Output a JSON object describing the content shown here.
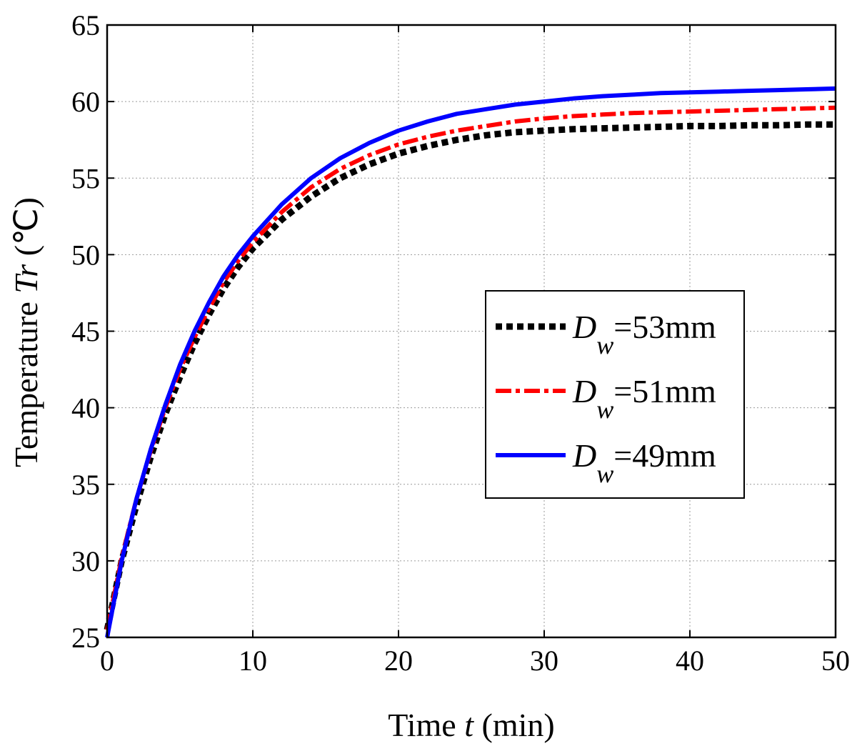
{
  "chart_data": {
    "type": "line",
    "xlabel": {
      "prefix": "Time ",
      "var": "t",
      "suffix": " (min)"
    },
    "ylabel": {
      "prefix": "Temperature ",
      "var": "Tr",
      "suffix": " (℃)"
    },
    "xlim": [
      0,
      50
    ],
    "ylim": [
      25,
      65
    ],
    "xticks": [
      0,
      10,
      20,
      30,
      40,
      50
    ],
    "yticks": [
      25,
      30,
      35,
      40,
      45,
      50,
      55,
      60,
      65
    ],
    "grid": true,
    "legend_position": "center-right",
    "series": [
      {
        "name": "D_w=53mm",
        "label_main": "D",
        "label_sub": "w",
        "label_rest": "=53mm",
        "color": "#000000",
        "style": "dotted",
        "x": [
          0,
          1,
          2,
          3,
          4,
          5,
          6,
          7,
          8,
          9,
          10,
          12,
          14,
          16,
          18,
          20,
          22,
          24,
          26,
          28,
          30,
          32,
          34,
          36,
          38,
          40,
          42,
          44,
          46,
          48,
          50
        ],
        "y": [
          25.5,
          30.0,
          33.6,
          36.8,
          39.6,
          42.0,
          44.2,
          46.1,
          47.8,
          49.2,
          50.4,
          52.3,
          53.8,
          55.0,
          55.9,
          56.6,
          57.1,
          57.5,
          57.8,
          58.0,
          58.1,
          58.2,
          58.25,
          58.3,
          58.35,
          58.4,
          58.4,
          58.45,
          58.45,
          58.5,
          58.5
        ]
      },
      {
        "name": "D_w=51mm",
        "label_main": "D",
        "label_sub": "w",
        "label_rest": "=51mm",
        "color": "#ff0000",
        "style": "dashdot",
        "x": [
          0,
          1,
          2,
          3,
          4,
          5,
          6,
          7,
          8,
          9,
          10,
          12,
          14,
          16,
          18,
          20,
          22,
          24,
          26,
          28,
          30,
          32,
          34,
          36,
          38,
          40,
          42,
          44,
          46,
          48,
          50
        ],
        "y": [
          25.5,
          30.2,
          34.0,
          37.2,
          40.0,
          42.5,
          44.6,
          46.5,
          48.2,
          49.6,
          50.8,
          52.8,
          54.4,
          55.6,
          56.5,
          57.2,
          57.7,
          58.1,
          58.4,
          58.7,
          58.9,
          59.05,
          59.15,
          59.25,
          59.3,
          59.35,
          59.4,
          59.45,
          59.5,
          59.55,
          59.6
        ]
      },
      {
        "name": "D_w=49mm",
        "label_main": "D",
        "label_sub": "w",
        "label_rest": "=49mm",
        "color": "#0000ff",
        "style": "solid",
        "x": [
          0,
          1,
          2,
          3,
          4,
          5,
          6,
          7,
          8,
          9,
          10,
          12,
          14,
          16,
          18,
          20,
          22,
          24,
          26,
          28,
          30,
          32,
          34,
          36,
          38,
          40,
          42,
          44,
          46,
          48,
          50
        ],
        "y": [
          25.0,
          30.0,
          34.0,
          37.3,
          40.2,
          42.8,
          45.0,
          46.9,
          48.6,
          50.0,
          51.2,
          53.3,
          55.0,
          56.3,
          57.3,
          58.1,
          58.7,
          59.2,
          59.5,
          59.8,
          60.0,
          60.2,
          60.35,
          60.45,
          60.55,
          60.6,
          60.65,
          60.7,
          60.75,
          60.8,
          60.85
        ]
      }
    ]
  }
}
